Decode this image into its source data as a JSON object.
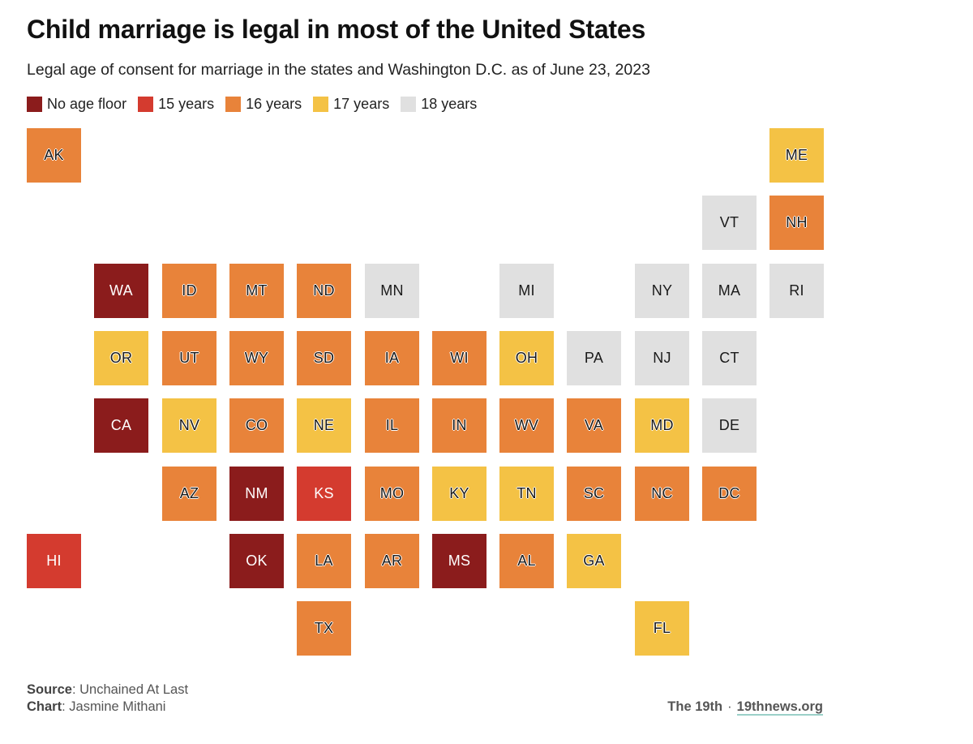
{
  "header": {
    "title": "Child marriage is legal in most of the United States",
    "subtitle": "Legal age of consent for marriage in the states and Washington D.C. as of June 23, 2023"
  },
  "legend": [
    {
      "key": "none",
      "label": "No age floor",
      "color": "#8b1c1c"
    },
    {
      "key": "15",
      "label": "15 years",
      "color": "#d43b2f"
    },
    {
      "key": "16",
      "label": "16 years",
      "color": "#e8833a"
    },
    {
      "key": "17",
      "label": "17 years",
      "color": "#f4c245"
    },
    {
      "key": "18",
      "label": "18 years",
      "color": "#e0e0e0"
    }
  ],
  "states": [
    {
      "abbr": "AK",
      "cat": "16",
      "col": 0,
      "row": 0
    },
    {
      "abbr": "ME",
      "cat": "17",
      "col": 11,
      "row": 0
    },
    {
      "abbr": "VT",
      "cat": "18",
      "col": 10,
      "row": 1
    },
    {
      "abbr": "NH",
      "cat": "16",
      "col": 11,
      "row": 1
    },
    {
      "abbr": "WA",
      "cat": "none",
      "col": 1,
      "row": 2
    },
    {
      "abbr": "ID",
      "cat": "16",
      "col": 2,
      "row": 2
    },
    {
      "abbr": "MT",
      "cat": "16",
      "col": 3,
      "row": 2
    },
    {
      "abbr": "ND",
      "cat": "16",
      "col": 4,
      "row": 2
    },
    {
      "abbr": "MN",
      "cat": "18",
      "col": 5,
      "row": 2
    },
    {
      "abbr": "MI",
      "cat": "18",
      "col": 7,
      "row": 2
    },
    {
      "abbr": "NY",
      "cat": "18",
      "col": 9,
      "row": 2
    },
    {
      "abbr": "MA",
      "cat": "18",
      "col": 10,
      "row": 2
    },
    {
      "abbr": "RI",
      "cat": "18",
      "col": 11,
      "row": 2
    },
    {
      "abbr": "OR",
      "cat": "17",
      "col": 1,
      "row": 3
    },
    {
      "abbr": "UT",
      "cat": "16",
      "col": 2,
      "row": 3
    },
    {
      "abbr": "WY",
      "cat": "16",
      "col": 3,
      "row": 3
    },
    {
      "abbr": "SD",
      "cat": "16",
      "col": 4,
      "row": 3
    },
    {
      "abbr": "IA",
      "cat": "16",
      "col": 5,
      "row": 3
    },
    {
      "abbr": "WI",
      "cat": "16",
      "col": 6,
      "row": 3
    },
    {
      "abbr": "OH",
      "cat": "17",
      "col": 7,
      "row": 3
    },
    {
      "abbr": "PA",
      "cat": "18",
      "col": 8,
      "row": 3
    },
    {
      "abbr": "NJ",
      "cat": "18",
      "col": 9,
      "row": 3
    },
    {
      "abbr": "CT",
      "cat": "18",
      "col": 10,
      "row": 3
    },
    {
      "abbr": "CA",
      "cat": "none",
      "col": 1,
      "row": 4
    },
    {
      "abbr": "NV",
      "cat": "17",
      "col": 2,
      "row": 4
    },
    {
      "abbr": "CO",
      "cat": "16",
      "col": 3,
      "row": 4
    },
    {
      "abbr": "NE",
      "cat": "17",
      "col": 4,
      "row": 4
    },
    {
      "abbr": "IL",
      "cat": "16",
      "col": 5,
      "row": 4
    },
    {
      "abbr": "IN",
      "cat": "16",
      "col": 6,
      "row": 4
    },
    {
      "abbr": "WV",
      "cat": "16",
      "col": 7,
      "row": 4
    },
    {
      "abbr": "VA",
      "cat": "16",
      "col": 8,
      "row": 4
    },
    {
      "abbr": "MD",
      "cat": "17",
      "col": 9,
      "row": 4
    },
    {
      "abbr": "DE",
      "cat": "18",
      "col": 10,
      "row": 4
    },
    {
      "abbr": "AZ",
      "cat": "16",
      "col": 2,
      "row": 5
    },
    {
      "abbr": "NM",
      "cat": "none",
      "col": 3,
      "row": 5
    },
    {
      "abbr": "KS",
      "cat": "15",
      "col": 4,
      "row": 5
    },
    {
      "abbr": "MO",
      "cat": "16",
      "col": 5,
      "row": 5
    },
    {
      "abbr": "KY",
      "cat": "17",
      "col": 6,
      "row": 5
    },
    {
      "abbr": "TN",
      "cat": "17",
      "col": 7,
      "row": 5
    },
    {
      "abbr": "SC",
      "cat": "16",
      "col": 8,
      "row": 5
    },
    {
      "abbr": "NC",
      "cat": "16",
      "col": 9,
      "row": 5
    },
    {
      "abbr": "DC",
      "cat": "16",
      "col": 10,
      "row": 5
    },
    {
      "abbr": "HI",
      "cat": "15",
      "col": 0,
      "row": 6
    },
    {
      "abbr": "OK",
      "cat": "none",
      "col": 3,
      "row": 6
    },
    {
      "abbr": "LA",
      "cat": "16",
      "col": 4,
      "row": 6
    },
    {
      "abbr": "AR",
      "cat": "16",
      "col": 5,
      "row": 6
    },
    {
      "abbr": "MS",
      "cat": "none",
      "col": 6,
      "row": 6
    },
    {
      "abbr": "AL",
      "cat": "16",
      "col": 7,
      "row": 6
    },
    {
      "abbr": "GA",
      "cat": "17",
      "col": 8,
      "row": 6
    },
    {
      "abbr": "TX",
      "cat": "16",
      "col": 4,
      "row": 7
    },
    {
      "abbr": "FL",
      "cat": "17",
      "col": 9,
      "row": 7
    }
  ],
  "footer": {
    "source_label": "Source",
    "source_value": ": Unchained At Last",
    "chart_label": "Chart",
    "chart_value": ": Jasmine Mithani",
    "brand": "The 19th",
    "separator": "·",
    "site": "19thnews.org"
  }
}
